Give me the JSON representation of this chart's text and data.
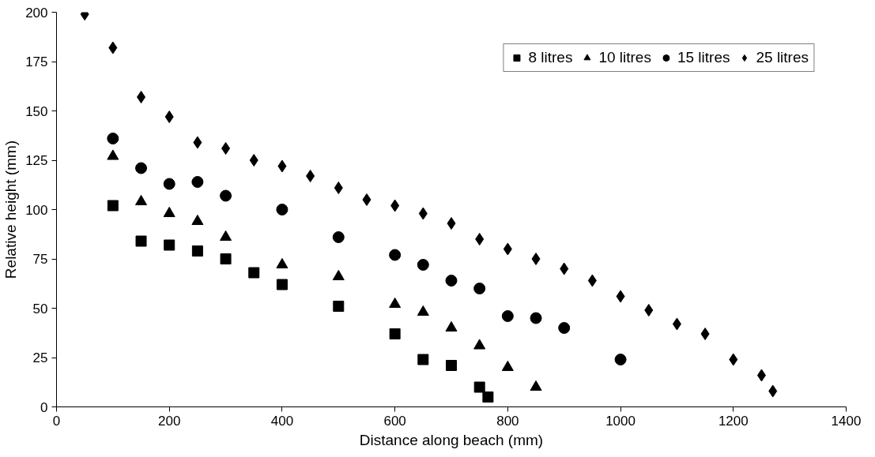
{
  "chart_data": {
    "type": "scatter",
    "xlabel": "Distance along beach (mm)",
    "ylabel": "Relative height (mm)",
    "xlim": [
      0,
      1400
    ],
    "ylim": [
      0,
      200
    ],
    "xticks": [
      0,
      200,
      400,
      600,
      800,
      1000,
      1200,
      1400
    ],
    "yticks": [
      0,
      25,
      50,
      75,
      100,
      125,
      150,
      175,
      200
    ],
    "grid": false,
    "legend": "top right",
    "series": [
      {
        "name": "8 litres",
        "color": "#000000",
        "marker": "square",
        "x": [
          100,
          150,
          200,
          250,
          300,
          350,
          400,
          500,
          600,
          650,
          700,
          750,
          765
        ],
        "values": [
          102,
          84,
          82,
          79,
          75,
          68,
          62,
          51,
          37,
          24,
          21,
          10,
          5
        ]
      },
      {
        "name": "10 litres",
        "color": "#000000",
        "marker": "triangle",
        "x": [
          100,
          150,
          200,
          250,
          300,
          400,
          500,
          600,
          650,
          700,
          750,
          800,
          850
        ],
        "values": [
          127,
          104,
          98,
          94,
          86,
          72,
          66,
          52,
          48,
          40,
          31,
          20,
          10
        ]
      },
      {
        "name": "15 litres",
        "color": "#000000",
        "marker": "circle",
        "x": [
          100,
          150,
          200,
          250,
          300,
          400,
          500,
          600,
          650,
          700,
          750,
          800,
          850,
          900,
          1000
        ],
        "values": [
          136,
          121,
          113,
          114,
          107,
          100,
          86,
          77,
          72,
          64,
          60,
          46,
          45,
          40,
          24
        ]
      },
      {
        "name": "25 litres",
        "color": "#000000",
        "marker": "diamond",
        "x": [
          50,
          100,
          150,
          200,
          250,
          300,
          350,
          400,
          450,
          500,
          550,
          600,
          650,
          700,
          750,
          800,
          850,
          900,
          950,
          1000,
          1050,
          1100,
          1150,
          1200,
          1250,
          1270
        ],
        "values": [
          199,
          182,
          157,
          147,
          134,
          131,
          125,
          122,
          117,
          111,
          105,
          102,
          98,
          93,
          85,
          80,
          75,
          70,
          64,
          56,
          49,
          42,
          37,
          24,
          16,
          8
        ]
      }
    ]
  }
}
